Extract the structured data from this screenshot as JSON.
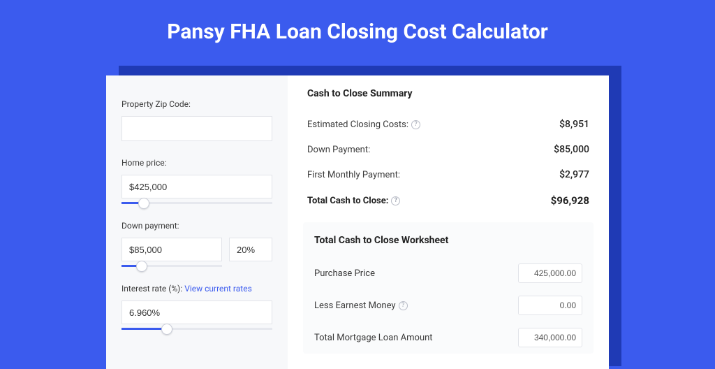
{
  "title": "Pansy FHA Loan Closing Cost Calculator",
  "colors": {
    "brand": "#3b5bee",
    "shadow": "#1f3ab5",
    "bg": "#ffffff",
    "panel": "#f7f8fa",
    "worksheet_bg": "#fafbfc",
    "border": "#e2e4e9",
    "text": "#3a3a3a"
  },
  "inputs": {
    "zip_label": "Property Zip Code:",
    "zip_value": "",
    "homeprice_label": "Home price:",
    "homeprice_value": "$425,000",
    "homeprice_slider_pct": 15,
    "downpayment_label": "Down payment:",
    "downpayment_value": "$85,000",
    "downpayment_pct_value": "20%",
    "downpayment_slider_pct": 20,
    "rate_label": "Interest rate (%):",
    "rate_link": "View current rates",
    "rate_value": "6.960%",
    "rate_slider_pct": 30
  },
  "summary": {
    "title": "Cash to Close Summary",
    "rows": [
      {
        "label": "Estimated Closing Costs:",
        "help": true,
        "value": "$8,951",
        "bold": false
      },
      {
        "label": "Down Payment:",
        "help": false,
        "value": "$85,000",
        "bold": false
      },
      {
        "label": "First Monthly Payment:",
        "help": false,
        "value": "$2,977",
        "bold": false
      },
      {
        "label": "Total Cash to Close:",
        "help": true,
        "value": "$96,928",
        "bold": true
      }
    ]
  },
  "worksheet": {
    "title": "Total Cash to Close Worksheet",
    "rows": [
      {
        "label": "Purchase Price",
        "help": false,
        "value": "425,000.00"
      },
      {
        "label": "Less Earnest Money",
        "help": true,
        "value": "0.00"
      },
      {
        "label": "Total Mortgage Loan Amount",
        "help": false,
        "value": "340,000.00"
      }
    ]
  }
}
